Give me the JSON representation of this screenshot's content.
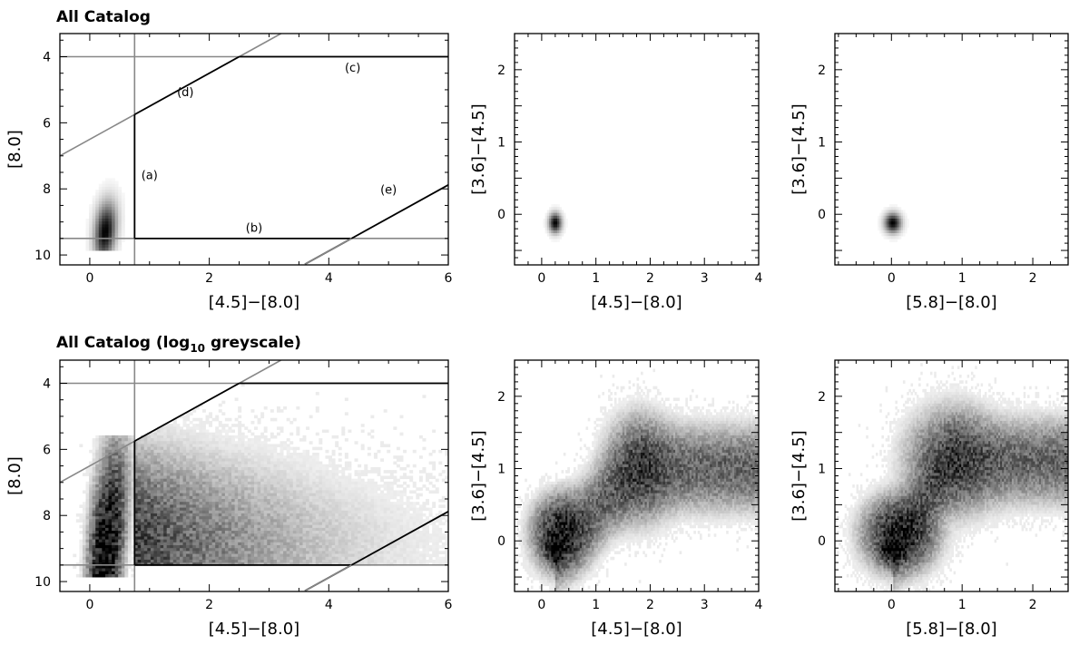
{
  "row_titles": {
    "top": "All Catalog",
    "bottom_main": "All Catalog (log",
    "bottom_sub": "10",
    "bottom_tail": " greyscale)"
  },
  "chart_data": [
    {
      "type": "heatmap",
      "id": "cmd-linear",
      "xlabel": "[4.5]−[8.0]",
      "ylabel": "[8.0]",
      "xlim": [
        -0.5,
        6
      ],
      "ylim": [
        10.3,
        3.3
      ],
      "y_inverted": true,
      "xticks": [
        0,
        2,
        4,
        6
      ],
      "yticks": [
        4,
        6,
        8,
        10
      ],
      "greyscale": "linear",
      "density_peak": {
        "x": 0.25,
        "y": 9.3
      },
      "reference_lines": {
        "vertical_x": 0.75,
        "horizontal_y": 9.5,
        "horizontal_top_y": 4.0
      },
      "selection_boundaries": [
        {
          "label": "(a)",
          "type": "vertical",
          "x": 0.75,
          "y_range": [
            5.75,
            9.5
          ]
        },
        {
          "label": "(b)",
          "type": "horizontal",
          "y": 9.5,
          "x_range": [
            0.75,
            4.38
          ]
        },
        {
          "label": "(c)",
          "type": "horizontal",
          "y": 4.0,
          "x_range": [
            2.5,
            6.0
          ]
        },
        {
          "label": "(d)",
          "type": "line",
          "points": [
            [
              0.75,
              5.75
            ],
            [
              2.5,
              4.0
            ]
          ]
        },
        {
          "label": "(e)",
          "type": "line",
          "points": [
            [
              4.38,
              9.5
            ],
            [
              6.0,
              7.88
            ]
          ]
        }
      ]
    },
    {
      "type": "heatmap",
      "id": "ccd-45-80-linear",
      "xlabel": "[4.5]−[8.0]",
      "ylabel": "[3.6]−[4.5]",
      "xlim": [
        -0.5,
        4
      ],
      "ylim": [
        -0.7,
        2.5
      ],
      "xticks": [
        0,
        1,
        2,
        3,
        4
      ],
      "yticks": [
        0,
        1,
        2
      ],
      "greyscale": "linear",
      "density_peak": {
        "x": 0.25,
        "y": -0.12
      }
    },
    {
      "type": "heatmap",
      "id": "ccd-58-80-linear",
      "xlabel": "[5.8]−[8.0]",
      "ylabel": "[3.6]−[4.5]",
      "xlim": [
        -0.8,
        2.5
      ],
      "ylim": [
        -0.7,
        2.5
      ],
      "xticks": [
        0,
        1,
        2
      ],
      "yticks": [
        0,
        1,
        2
      ],
      "greyscale": "linear",
      "density_peak": {
        "x": 0.02,
        "y": -0.12
      }
    },
    {
      "type": "heatmap",
      "id": "cmd-log",
      "xlabel": "[4.5]−[8.0]",
      "ylabel": "[8.0]",
      "xlim": [
        -0.5,
        6
      ],
      "ylim": [
        10.3,
        3.3
      ],
      "y_inverted": true,
      "xticks": [
        0,
        2,
        4,
        6
      ],
      "yticks": [
        4,
        6,
        8,
        10
      ],
      "greyscale": "log10",
      "density_peak": {
        "x": 0.25,
        "y": 9.3
      },
      "reference_lines": {
        "vertical_x": 0.75,
        "horizontal_y": 9.5,
        "horizontal_top_y": 4.0
      }
    },
    {
      "type": "heatmap",
      "id": "ccd-45-80-log",
      "xlabel": "[4.5]−[8.0]",
      "ylabel": "[3.6]−[4.5]",
      "xlim": [
        -0.5,
        4
      ],
      "ylim": [
        -0.7,
        2.5
      ],
      "xticks": [
        0,
        1,
        2,
        3,
        4
      ],
      "yticks": [
        0,
        1,
        2
      ],
      "greyscale": "log10",
      "density_peak": {
        "x": 0.25,
        "y": -0.12
      },
      "secondary_peak": {
        "x": 1.8,
        "y": 1.0
      }
    },
    {
      "type": "heatmap",
      "id": "ccd-58-80-log",
      "xlabel": "[5.8]−[8.0]",
      "ylabel": "[3.6]−[4.5]",
      "xlim": [
        -0.8,
        2.5
      ],
      "ylim": [
        -0.7,
        2.5
      ],
      "xticks": [
        0,
        1,
        2
      ],
      "yticks": [
        0,
        1,
        2
      ],
      "greyscale": "log10",
      "density_peak": {
        "x": 0.02,
        "y": -0.12
      },
      "secondary_peak": {
        "x": 0.85,
        "y": 1.1
      }
    }
  ]
}
